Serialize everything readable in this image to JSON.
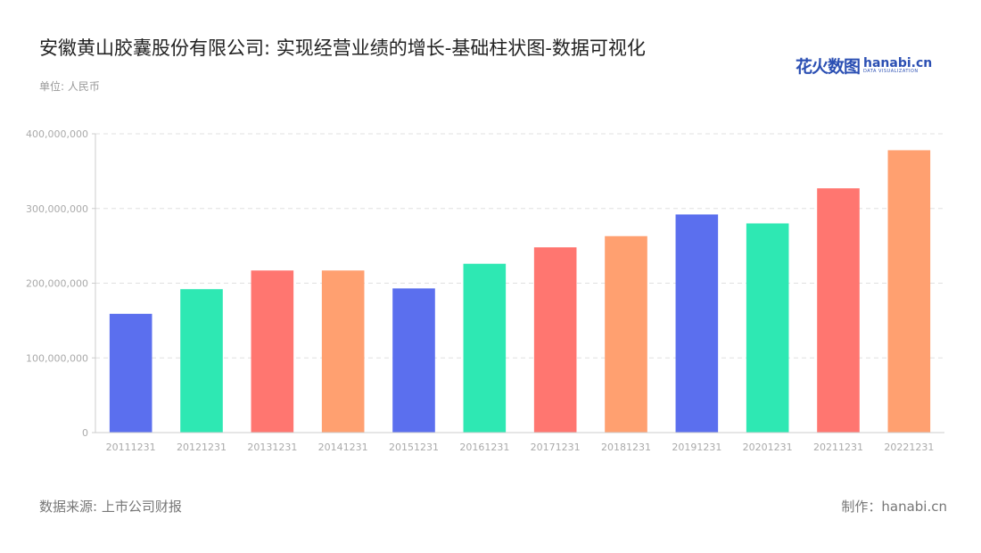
{
  "header": {
    "title": "安徽黄山胶囊股份有限公司: 实现经营业绩的增长-基础柱状图-数据可视化",
    "unit": "单位: 人民币"
  },
  "logo": {
    "cn": "花火数图",
    "en": "hanabi.cn",
    "sub": "DATA VISUALIZATION"
  },
  "footer": {
    "source": "数据来源: 上市公司财报",
    "credit": "制作：hanabi.cn"
  },
  "colors": [
    "#5b6fee",
    "#2ee8b3",
    "#ff7670",
    "#ffa070"
  ],
  "chart_data": {
    "type": "bar",
    "title": "安徽黄山胶囊股份有限公司: 实现经营业绩的增长-基础柱状图-数据可视化",
    "ylabel": "单位: 人民币",
    "categories": [
      "20111231",
      "20121231",
      "20131231",
      "20141231",
      "20151231",
      "20161231",
      "20171231",
      "20181231",
      "20191231",
      "20201231",
      "20211231",
      "20221231"
    ],
    "values": [
      159000000,
      192000000,
      217000000,
      217000000,
      193000000,
      226000000,
      248000000,
      263000000,
      292000000,
      280000000,
      327000000,
      378000000
    ],
    "ylim": [
      0,
      400000000
    ],
    "yticks": [
      "0",
      "100,000,000",
      "200,000,000",
      "300,000,000",
      "400,000,000"
    ],
    "grid": true,
    "legend": "none"
  }
}
